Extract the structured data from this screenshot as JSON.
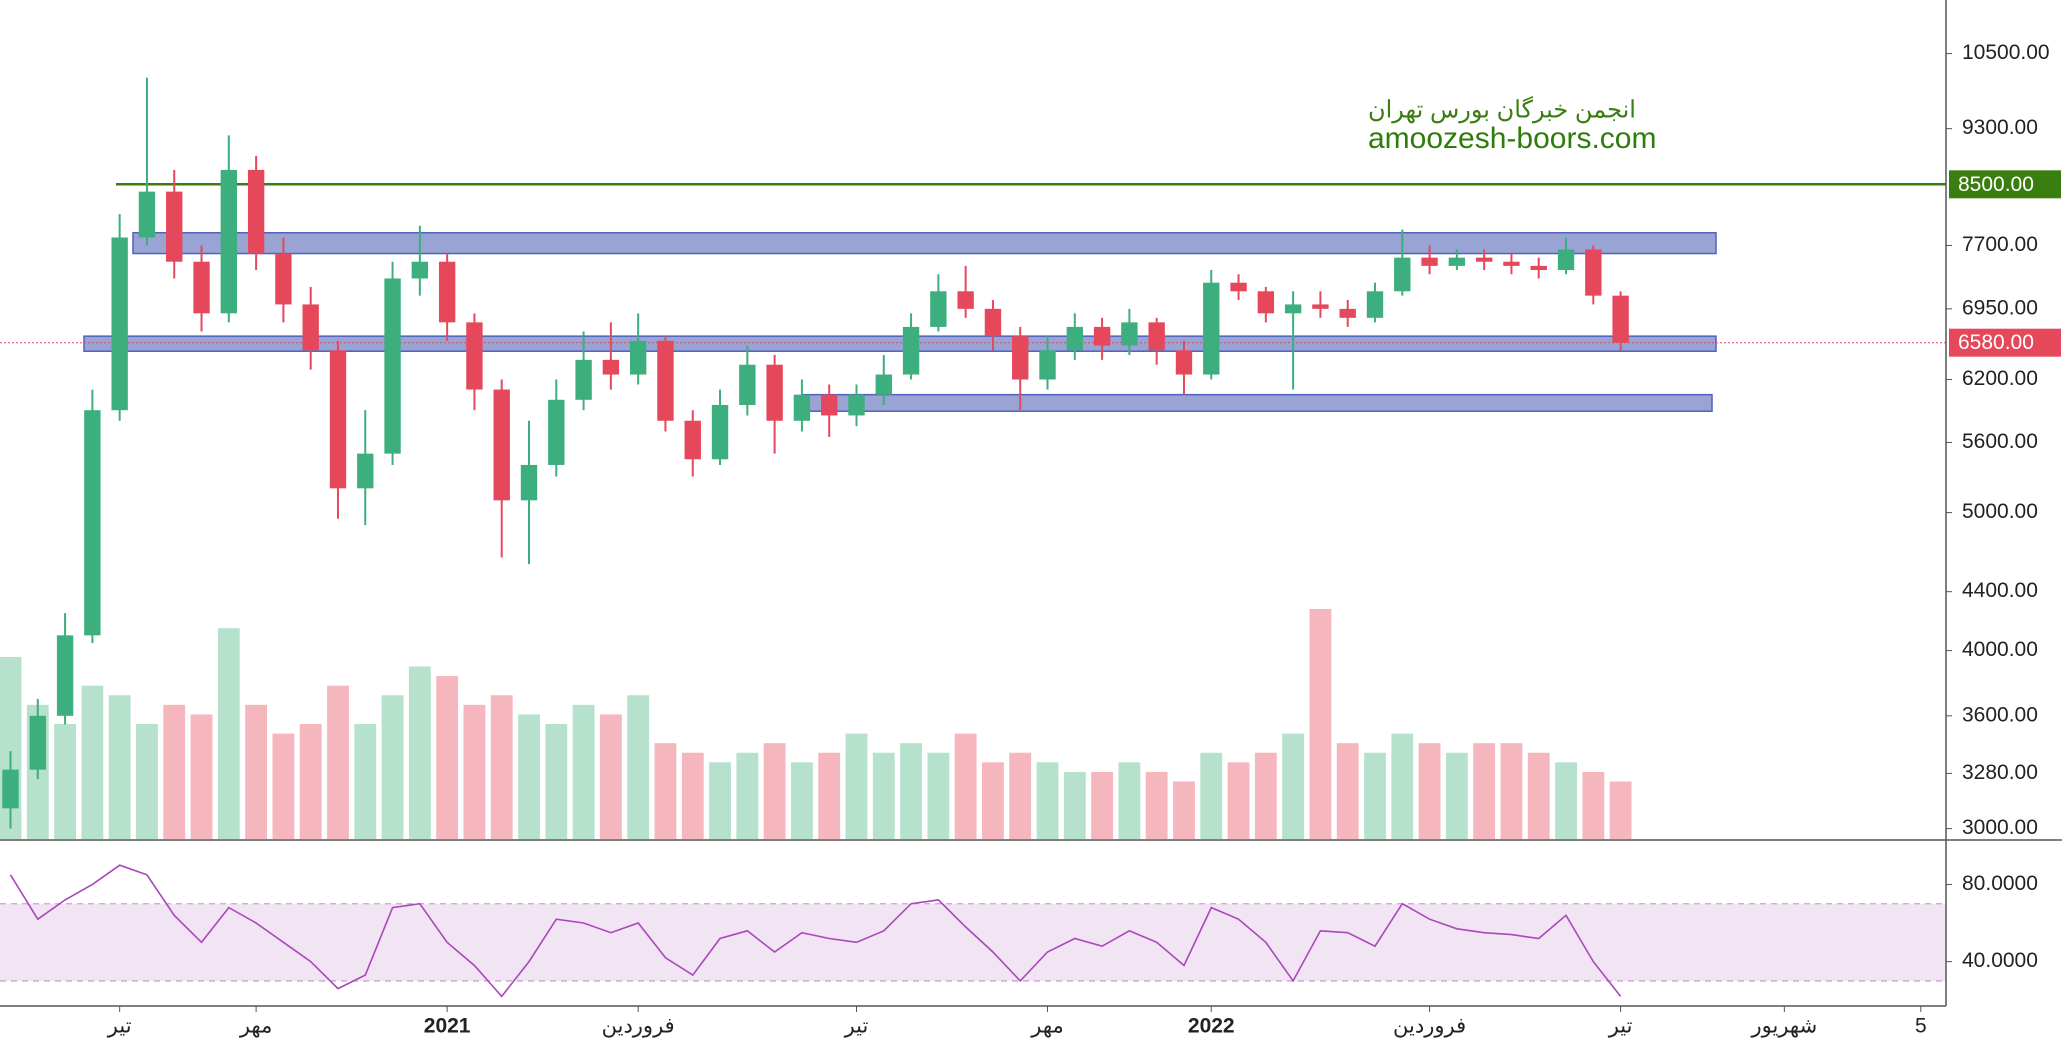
{
  "chart_data": {
    "type": "candlestick",
    "watermark": [
      "انجمن خبرگان بورس تهران",
      "amoozesh-boors.com"
    ],
    "categories": [
      null,
      null,
      null,
      null,
      "تیر",
      null,
      null,
      null,
      null,
      "مهر",
      null,
      null,
      null,
      null,
      null,
      null,
      "2021",
      null,
      null,
      null,
      null,
      null,
      null,
      "فروردین",
      null,
      null,
      null,
      null,
      null,
      null,
      null,
      "تیر",
      null,
      null,
      null,
      null,
      null,
      null,
      "مهر",
      null,
      null,
      null,
      null,
      null,
      "2022",
      null,
      null,
      null,
      null,
      null,
      null,
      null,
      "فروردین",
      null,
      null,
      null,
      null,
      null,
      null,
      "تیر",
      null,
      null,
      null,
      null,
      null,
      "شهریور",
      null,
      null,
      null,
      null,
      "5"
    ],
    "open": [
      3100,
      3300,
      3600,
      4100,
      5900,
      7800,
      8400,
      7500,
      6900,
      8700,
      7600,
      7000,
      6500,
      5200,
      5500,
      7300,
      7500,
      6800,
      6100,
      5100,
      5400,
      6000,
      6400,
      6250,
      6600,
      5800,
      5450,
      5950,
      6350,
      5800,
      6050,
      5850,
      6050,
      6250,
      6750,
      7150,
      6950,
      6650,
      6200,
      6500,
      6750,
      6550,
      6800,
      6500,
      6250,
      7250,
      7150,
      6900,
      7000,
      6950,
      6850,
      7150,
      7550,
      7450,
      7550,
      7500,
      7450,
      7400,
      7650,
      7100,
      null,
      null,
      null,
      null,
      null,
      null,
      null,
      null,
      null,
      null,
      null
    ],
    "high": [
      3400,
      3700,
      4250,
      6100,
      8100,
      10100,
      8700,
      7700,
      9200,
      8900,
      7800,
      7200,
      6600,
      5900,
      7500,
      7950,
      7600,
      6900,
      6200,
      5800,
      6200,
      6700,
      6800,
      6900,
      6650,
      5900,
      6100,
      6550,
      6450,
      6200,
      6150,
      6150,
      6450,
      6900,
      7350,
      7450,
      7050,
      6750,
      6650,
      6900,
      6850,
      6950,
      6850,
      6600,
      7400,
      7350,
      7200,
      7150,
      7150,
      7050,
      7250,
      7900,
      7700,
      7650,
      7650,
      7600,
      7550,
      7800,
      7700,
      7150,
      null,
      null,
      null,
      null,
      null,
      null,
      null,
      null,
      null,
      null,
      null
    ],
    "low": [
      3000,
      3250,
      3550,
      4050,
      5800,
      7700,
      7300,
      6700,
      6800,
      7400,
      6800,
      6300,
      4950,
      4900,
      5400,
      7100,
      6600,
      5900,
      4650,
      4600,
      5300,
      5900,
      6100,
      6150,
      5700,
      5300,
      5400,
      5850,
      5500,
      5700,
      5650,
      5750,
      5950,
      6200,
      6700,
      6850,
      6500,
      5900,
      6100,
      6400,
      6400,
      6450,
      6350,
      6050,
      6200,
      7050,
      6800,
      6100,
      6850,
      6750,
      6800,
      7100,
      7350,
      7400,
      7400,
      7350,
      7300,
      7350,
      7000,
      6500,
      null,
      null,
      null,
      null,
      null,
      null,
      null,
      null,
      null,
      null,
      null
    ],
    "close": [
      3300,
      3600,
      4100,
      5900,
      7800,
      8400,
      7500,
      6900,
      8700,
      7600,
      7000,
      6500,
      5200,
      5500,
      7300,
      7500,
      6800,
      6100,
      5100,
      5400,
      6000,
      6400,
      6250,
      6600,
      5800,
      5450,
      5950,
      6350,
      5800,
      6050,
      5850,
      6050,
      6250,
      6750,
      7150,
      6950,
      6650,
      6200,
      6500,
      6750,
      6550,
      6800,
      6500,
      6250,
      7250,
      7150,
      6900,
      7000,
      6950,
      6850,
      7150,
      7550,
      7450,
      7550,
      7500,
      7450,
      7400,
      7650,
      7100,
      6580,
      null,
      null,
      null,
      null,
      null,
      null,
      null,
      null,
      null,
      null,
      null
    ],
    "up_color": "#3dae7d",
    "down_color": "#e6485b",
    "ylim": [
      2950,
      11450
    ],
    "log_scale": true,
    "yticks": [
      {
        "value": 10500,
        "label": "10500.00"
      },
      {
        "value": 9300,
        "label": "9300.00"
      },
      {
        "value": 7700,
        "label": "7700.00"
      },
      {
        "value": 6950,
        "label": "6950.00"
      },
      {
        "value": 6200,
        "label": "6200.00"
      },
      {
        "value": 5600,
        "label": "5600.00"
      },
      {
        "value": 5000,
        "label": "5000.00"
      },
      {
        "value": 4400,
        "label": "4400.00"
      },
      {
        "value": 4000,
        "label": "4000.00"
      },
      {
        "value": 3600,
        "label": "3600.00"
      },
      {
        "value": 3280,
        "label": "3280.00"
      },
      {
        "value": 3000,
        "label": "3000.00"
      }
    ],
    "levels": [
      {
        "value": 8500,
        "label": "8500.00",
        "color": "#3a7d10",
        "style": "solid"
      },
      {
        "value": 6580,
        "label": "6580.00",
        "color": "#e6485b",
        "style": "dotted"
      }
    ],
    "zones": [
      {
        "low": 7600,
        "high": 7860
      },
      {
        "low": 6490,
        "high": 6650
      },
      {
        "low": 5890,
        "high": 6050
      }
    ],
    "zone_color": "#8e9bd1",
    "volume": {
      "values": [
        95,
        70,
        60,
        80,
        75,
        60,
        70,
        65,
        110,
        70,
        55,
        60,
        80,
        60,
        75,
        90,
        85,
        70,
        75,
        65,
        60,
        70,
        65,
        75,
        50,
        45,
        40,
        45,
        50,
        40,
        45,
        55,
        45,
        50,
        45,
        55,
        40,
        45,
        40,
        35,
        35,
        40,
        35,
        30,
        45,
        40,
        45,
        55,
        120,
        50,
        45,
        55,
        50,
        45,
        50,
        50,
        45,
        40,
        35,
        30,
        null,
        null,
        null,
        null,
        null,
        null,
        null,
        null,
        null,
        null,
        null
      ],
      "up_color": "#a8dcc4",
      "down_color": "#f3a9b1"
    },
    "rsi": {
      "values": [
        85,
        62,
        72,
        80,
        90,
        85,
        64,
        50,
        68,
        60,
        50,
        40,
        26,
        33,
        68,
        70,
        50,
        38,
        22,
        40,
        62,
        60,
        55,
        60,
        42,
        33,
        52,
        56,
        45,
        55,
        52,
        50,
        56,
        70,
        72,
        58,
        45,
        30,
        45,
        52,
        48,
        56,
        50,
        38,
        68,
        62,
        50,
        30,
        56,
        55,
        48,
        70,
        62,
        57,
        55,
        54,
        52,
        64,
        40,
        22,
        null,
        null,
        null,
        null,
        null,
        null,
        null,
        null,
        null,
        null,
        null
      ],
      "color": "#ab47bc",
      "ylim": [
        17,
        102
      ],
      "yticks": [
        {
          "value": 80,
          "label": "80.0000"
        },
        {
          "value": 40,
          "label": "40.0000"
        }
      ],
      "band": [
        30,
        70
      ],
      "band_color": "#f1e4f3"
    }
  }
}
